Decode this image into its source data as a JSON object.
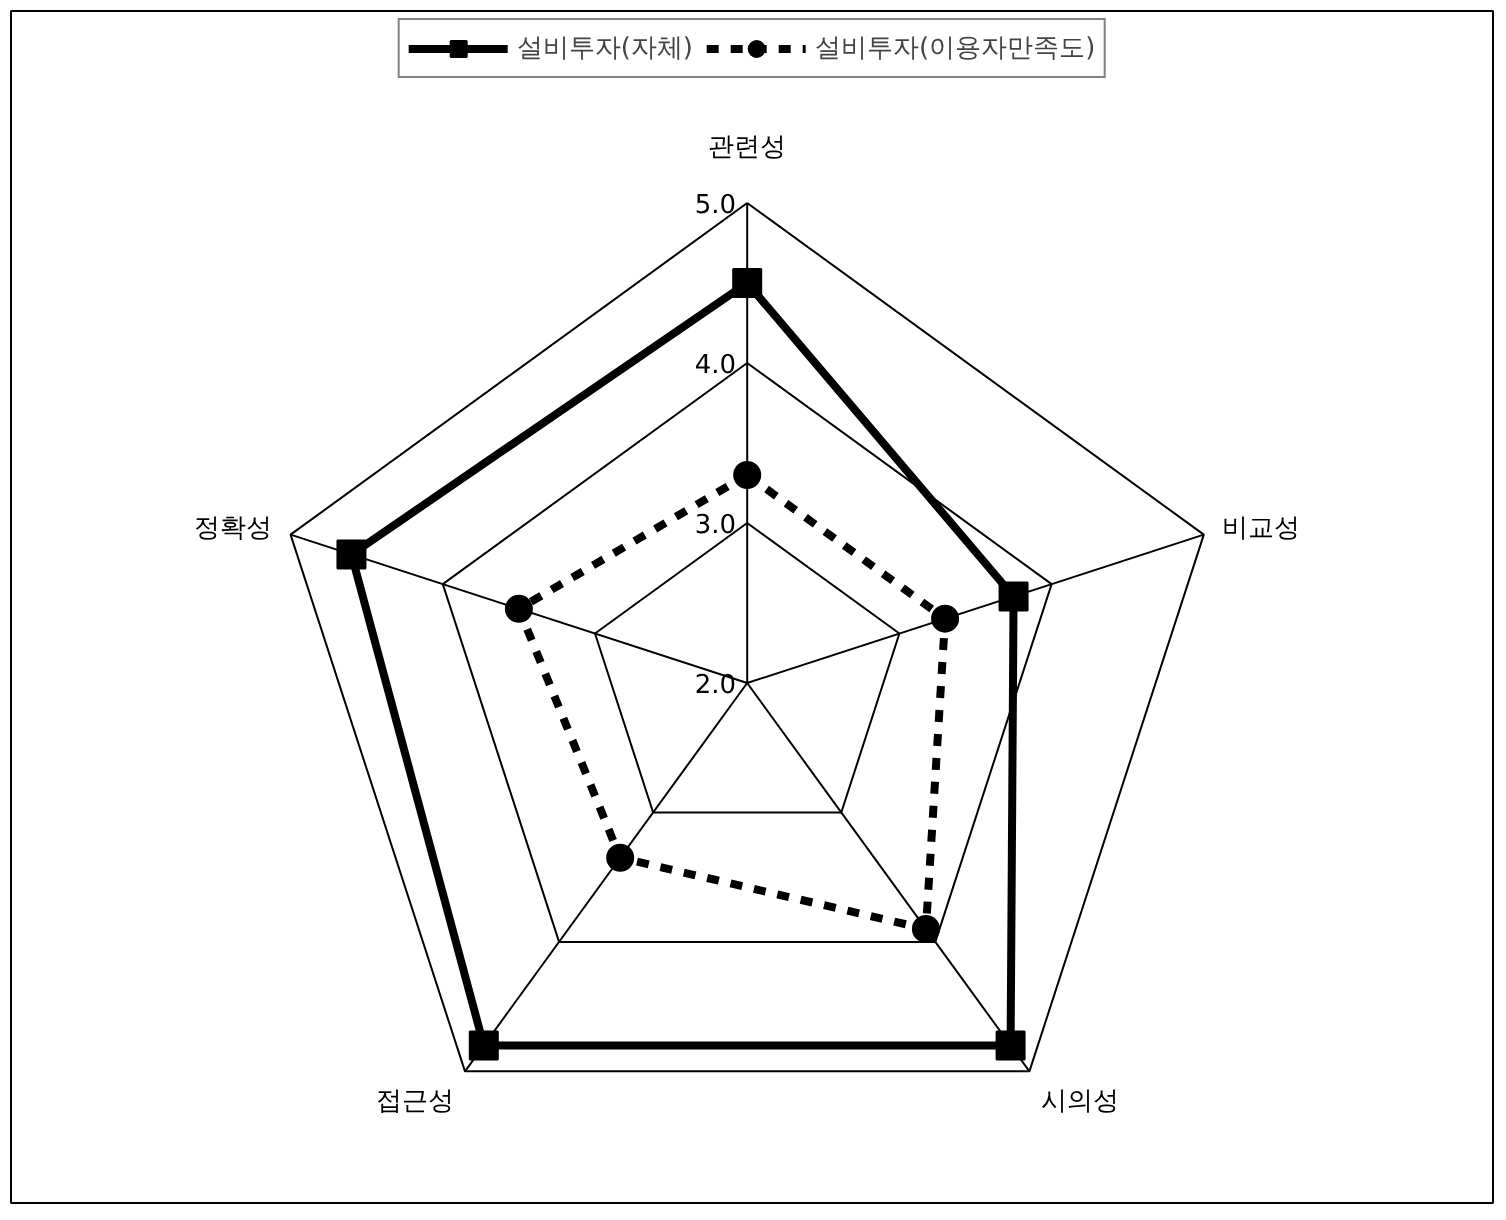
{
  "chart_data": {
    "type": "radar",
    "categories": [
      "관련성",
      "비교성",
      "시의성",
      "접근성",
      "정확성"
    ],
    "series": [
      {
        "name": "설비투자(자체)",
        "color": "#000000",
        "values": [
          4.5,
          3.75,
          4.8,
          4.8,
          4.6
        ],
        "marker": "square",
        "line_style": "solid"
      },
      {
        "name": "설비투자(이용자만족도)",
        "color": "#000000",
        "values": [
          3.3,
          3.3,
          3.9,
          3.35,
          3.5
        ],
        "marker": "circle",
        "line_style": "dashed"
      }
    ],
    "ylim": [
      2,
      5
    ],
    "yticks": [
      {
        "value": 2,
        "label": "2.0"
      },
      {
        "value": 3,
        "label": "3.0"
      },
      {
        "value": 4,
        "label": "4.0"
      },
      {
        "value": 5,
        "label": "5.0"
      }
    ],
    "grid": true,
    "legend": "top"
  }
}
